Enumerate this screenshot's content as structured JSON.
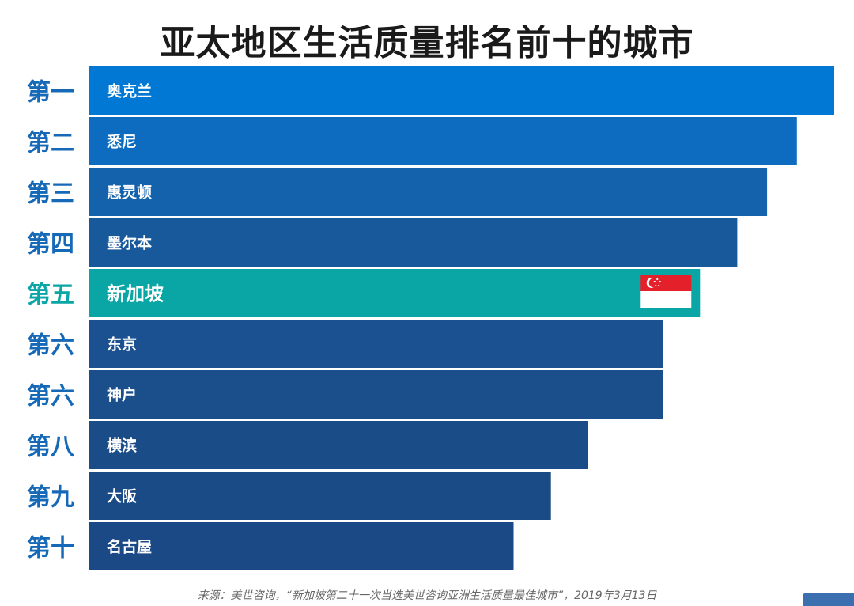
{
  "title": "亚太地区生活质量排名前十的城市",
  "source": "来源：美世咨询，“新加坡第二十一次当选美世咨询亚洲生活质量最佳城市”，2019年3月13日",
  "colors": {
    "rank_text": "#1569b6",
    "highlight": "#0aa6a6",
    "bar_gradient": [
      "#0078d4",
      "#0d6cbf",
      "#1462ac",
      "#18599c",
      "#1c5595",
      "#1b5190",
      "#1b4f8c",
      "#1a4c88",
      "#1a4b86",
      "#1a4985"
    ],
    "flag_red": "#e4212b",
    "flag_white": "#ffffff"
  },
  "chart_data": {
    "type": "bar",
    "orientation": "horizontal",
    "title": "亚太地区生活质量排名前十的城市",
    "categories": [
      "奥克兰",
      "悉尼",
      "惠灵顿",
      "墨尔本",
      "新加坡",
      "东京",
      "神户",
      "横滨",
      "大阪",
      "名古屋"
    ],
    "ranks": [
      "第一",
      "第二",
      "第三",
      "第四",
      "第五",
      "第六",
      "第六",
      "第八",
      "第九",
      "第十"
    ],
    "series": [
      {
        "values": [
          10,
          9.5,
          9.1,
          8.7,
          8.2,
          7.7,
          7.7,
          6.7,
          6.2,
          5.7
        ]
      }
    ],
    "highlighted_category": "新加坡",
    "xlim": [
      0,
      10
    ],
    "grid": false,
    "legend": "none"
  }
}
